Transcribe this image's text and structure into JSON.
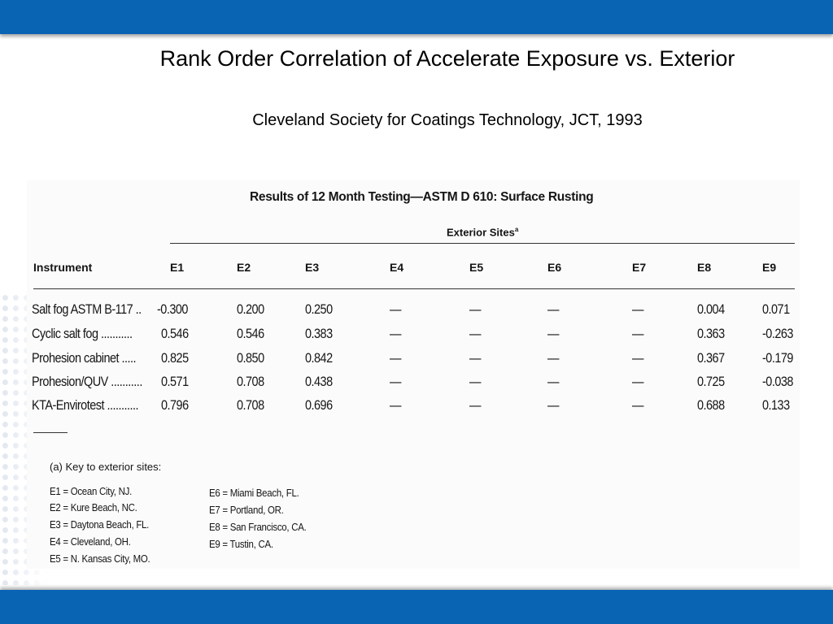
{
  "slide": {
    "title": "Rank Order Correlation of Accelerate Exposure  vs. Exterior",
    "subtitle": "Cleveland Society for Coatings Technology, JCT, 1993",
    "accent_color": "#0a64b4"
  },
  "table": {
    "heading": "Results of 12 Month Testing—ASTM D 610: Surface Rusting",
    "group_label": "Exterior Sites",
    "group_label_marker": "a",
    "columns": [
      "Instrument",
      "E1",
      "E2",
      "E3",
      "E4",
      "E5",
      "E6",
      "E7",
      "E8",
      "E9"
    ],
    "rows": [
      [
        "Salt fog ASTM B-117 ..",
        "-0.300",
        "0.200",
        "0.250",
        "—",
        "—",
        "—",
        "—",
        "0.004",
        "0.071"
      ],
      [
        "Cyclic salt fog ...........",
        "0.546",
        "0.546",
        "0.383",
        "—",
        "—",
        "—",
        "—",
        "0.363",
        "-0.263"
      ],
      [
        "Prohesion cabinet .....",
        "0.825",
        "0.850",
        "0.842",
        "—",
        "—",
        "—",
        "—",
        "0.367",
        "-0.179"
      ],
      [
        "Prohesion/QUV ...........",
        "0.571",
        "0.708",
        "0.438",
        "—",
        "—",
        "—",
        "—",
        "0.725",
        "-0.038"
      ],
      [
        "KTA-Envirotest ...........",
        "0.796",
        "0.708",
        "0.696",
        "—",
        "—",
        "—",
        "—",
        "0.688",
        "0.133"
      ]
    ]
  },
  "key": {
    "title": "(a)  Key to exterior sites:",
    "left": [
      "E1 = Ocean City, NJ.",
      "E2 = Kure Beach, NC.",
      "E3 = Daytona Beach, FL.",
      "E4 = Cleveland, OH.",
      "E5 = N. Kansas City, MO."
    ],
    "right": [
      "E6 = Miami Beach, FL.",
      "E7 = Portland, OR.",
      "E8 = San Francisco, CA.",
      "E9 = Tustin, CA."
    ]
  }
}
